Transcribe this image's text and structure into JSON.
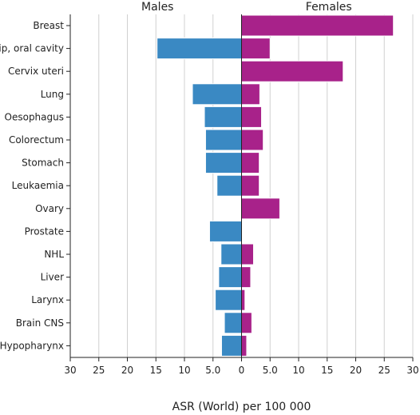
{
  "chart_data": {
    "type": "bar",
    "orientation": "horizontal",
    "layout": "back-to-back",
    "categories": [
      "Breast",
      "Lip, oral cavity",
      "Cervix uteri",
      "Lung",
      "Oesophagus",
      "Colorectum",
      "Stomach",
      "Leukaemia",
      "Ovary",
      "Prostate",
      "NHL",
      "Liver",
      "Larynx",
      "Brain CNS",
      "Hypopharynx"
    ],
    "series": [
      {
        "name": "Males",
        "color": "#3a89c3",
        "side": "left",
        "values": [
          0,
          14.8,
          0,
          8.6,
          6.5,
          6.3,
          6.3,
          4.3,
          0,
          5.6,
          3.6,
          4.0,
          4.6,
          3.0,
          3.5
        ]
      },
      {
        "name": "Females",
        "color": "#a8228a",
        "side": "right",
        "values": [
          26.6,
          5.0,
          17.8,
          3.2,
          3.5,
          3.8,
          3.1,
          3.1,
          6.7,
          0,
          2.1,
          1.6,
          0.6,
          1.8,
          0.9
        ]
      }
    ],
    "xlabel": "ASR (World) per 100 000",
    "xlim": [
      -30,
      30
    ],
    "xticks": [
      -30,
      -25,
      -20,
      -15,
      -10,
      -5,
      0,
      5,
      10,
      15,
      20,
      25,
      30
    ],
    "xtick_labels": [
      "30",
      "25",
      "20",
      "15",
      "10",
      "5.0",
      "0",
      "5.0",
      "10",
      "15",
      "20",
      "25",
      "30"
    ],
    "grid": "vertical",
    "panel_titles": [
      "Males",
      "Females"
    ]
  }
}
